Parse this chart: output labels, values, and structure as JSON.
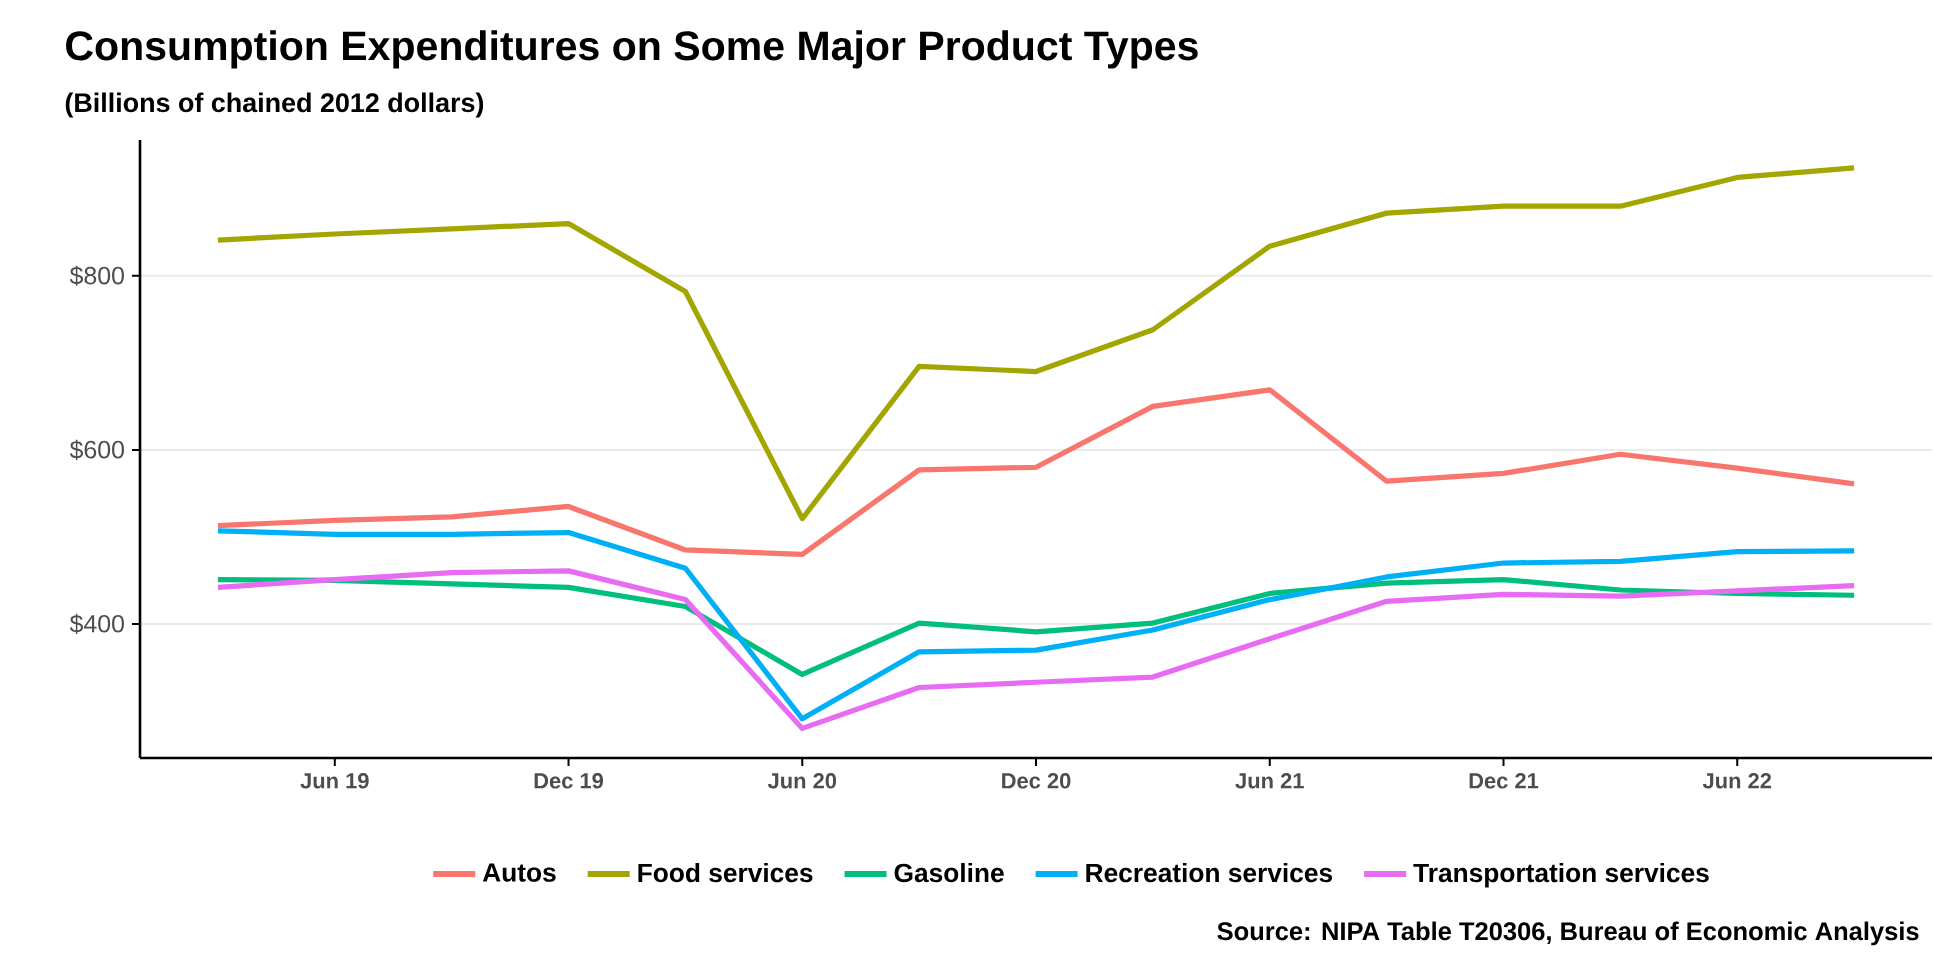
{
  "chart_data": {
    "type": "line",
    "title": "Consumption Expenditures on Some Major Product Types",
    "subtitle": "(Billions of chained 2012 dollars)",
    "annotations": [
      "Source: NIPA Table T20306, Bureau of Economic Analysis"
    ],
    "x": [
      "2019-03",
      "2019-06",
      "2019-09",
      "2019-12",
      "2020-03",
      "2020-06",
      "2020-09",
      "2020-12",
      "2021-03",
      "2021-06",
      "2021-09",
      "2021-12",
      "2022-03",
      "2022-06",
      "2022-09"
    ],
    "series": [
      {
        "name": "Autos",
        "color": "#f8766d",
        "values": [
          513,
          519,
          523,
          535,
          485,
          480,
          577,
          580,
          650,
          669,
          564,
          573,
          595,
          579,
          561
        ]
      },
      {
        "name": "Food services",
        "color": "#a3a500",
        "values": [
          841,
          848,
          854,
          860,
          782,
          521,
          696,
          690,
          738,
          834,
          872,
          880,
          880,
          913,
          924
        ]
      },
      {
        "name": "Gasoline",
        "color": "#00bf7d",
        "values": [
          451,
          450,
          446,
          442,
          420,
          342,
          401,
          391,
          401,
          435,
          447,
          451,
          439,
          435,
          433
        ]
      },
      {
        "name": "Recreation services",
        "color": "#00b0f6",
        "values": [
          507,
          503,
          503,
          505,
          464,
          291,
          368,
          370,
          393,
          428,
          454,
          470,
          472,
          483,
          484
        ]
      },
      {
        "name": "Transportation services",
        "color": "#e76bf3",
        "values": [
          442,
          451,
          459,
          461,
          428,
          280,
          327,
          333,
          339,
          383,
          426,
          434,
          432,
          438,
          444
        ]
      }
    ],
    "xlim": [
      "2019-01",
      "2022-11"
    ],
    "xticks": [
      {
        "value": "2019-06",
        "label": "Jun 19"
      },
      {
        "value": "2019-12",
        "label": "Dec 19"
      },
      {
        "value": "2020-06",
        "label": "Jun 20"
      },
      {
        "value": "2020-12",
        "label": "Dec 20"
      },
      {
        "value": "2021-06",
        "label": "Jun 21"
      },
      {
        "value": "2021-12",
        "label": "Dec 21"
      },
      {
        "value": "2022-06",
        "label": "Jun 22"
      }
    ],
    "ylim": [
      246,
      956
    ],
    "yticks": [
      {
        "value": 400,
        "label": "$400"
      },
      {
        "value": 600,
        "label": "$600"
      },
      {
        "value": 800,
        "label": "$800"
      }
    ],
    "grid": "y",
    "legend": "bottom",
    "line_style": "solid"
  }
}
